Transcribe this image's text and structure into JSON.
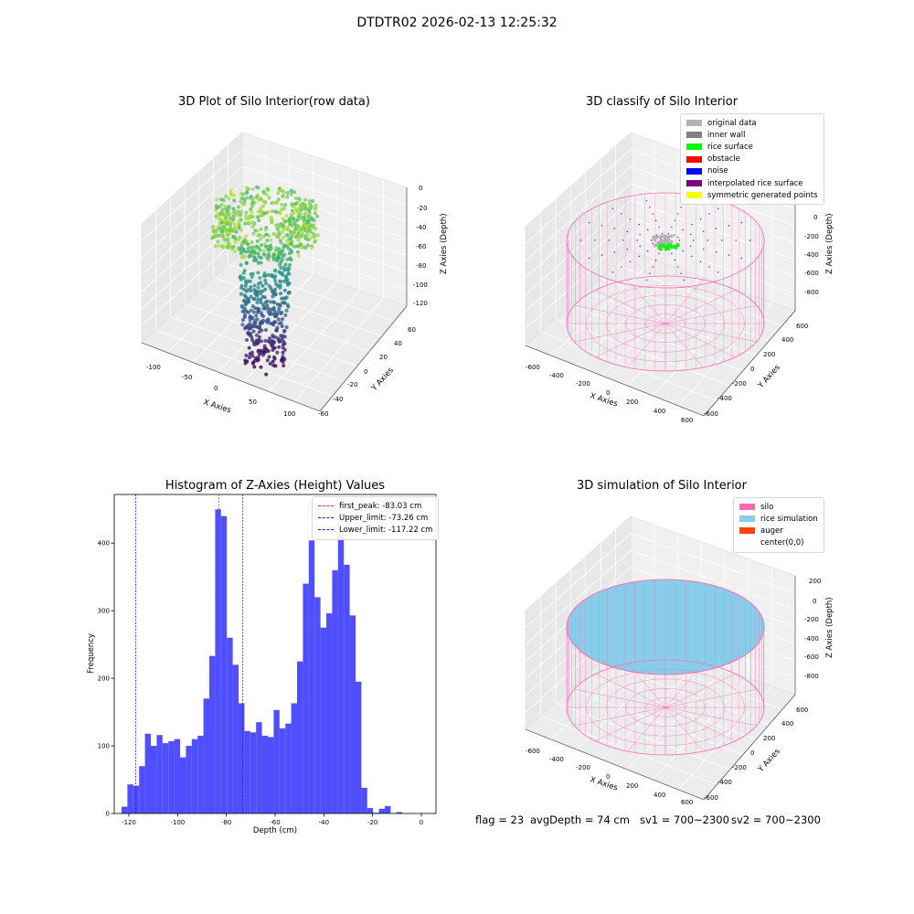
{
  "suptitle": "DTDTR02 2026-02-13 12:25:32",
  "colors": {
    "hist_bar": "#4b4bff",
    "first_peak_line": "#ff2a2a",
    "limit_line": "#1a1aff",
    "silo_wire": "#ff69b4",
    "rice_sim": "#87ceeb",
    "auger": "#ff4500",
    "original": "#b3b3b3",
    "inner_wall": "#808080",
    "rice_surface": "#00ff00",
    "obstacle": "#ff0000",
    "noise": "#0000ff",
    "interp_surface": "#800080",
    "symmetric": "#ffff00"
  },
  "panel1": {
    "title": "3D Plot of Silo Interior(row data)",
    "xlabel": "X Axies",
    "ylabel": "Y Axies",
    "zlabel": "Z Axies (Depth)",
    "xticks": [
      "-100",
      "-50",
      "0",
      "50",
      "100"
    ],
    "yticks": [
      "-60",
      "-40",
      "-20",
      "0",
      "20",
      "40",
      "60"
    ],
    "zticks": [
      "0",
      "-20",
      "-40",
      "-60",
      "-80",
      "-100",
      "-120"
    ]
  },
  "panel2": {
    "title": "3D classify of Silo Interior",
    "xlabel": "X Axies",
    "ylabel": "Y Axies",
    "zlabel": "Z Axies (Depth)",
    "xticks": [
      "-600",
      "-400",
      "-200",
      "0",
      "200",
      "400",
      "600"
    ],
    "yticks": [
      "-600",
      "-400",
      "-200",
      "0",
      "200",
      "400",
      "600"
    ],
    "zticks": [
      "0",
      "-200",
      "-400",
      "-600",
      "-800"
    ],
    "legend": [
      {
        "label": "original data",
        "color": "#b3b3b3"
      },
      {
        "label": "inner wall",
        "color": "#808080"
      },
      {
        "label": "rice surface",
        "color": "#00ff00"
      },
      {
        "label": "obstacle",
        "color": "#ff0000"
      },
      {
        "label": "noise",
        "color": "#0000ff"
      },
      {
        "label": "interpolated rice surface",
        "color": "#800080"
      },
      {
        "label": "symmetric generated points",
        "color": "#ffff00"
      }
    ]
  },
  "panel4": {
    "title": "3D simulation of Silo Interior",
    "xlabel": "X Axies",
    "ylabel": "Y Axies",
    "zlabel": "Z Axies (Depth)",
    "xticks": [
      "-600",
      "-400",
      "-200",
      "0",
      "200",
      "400",
      "600"
    ],
    "yticks": [
      "-600",
      "-400",
      "-200",
      "0",
      "200",
      "400",
      "600"
    ],
    "zticks": [
      "200",
      "0",
      "-200",
      "-400",
      "-600",
      "-800"
    ],
    "legend": [
      {
        "label": "silo",
        "color": "#ff69b4"
      },
      {
        "label": "rice simulation",
        "color": "#87ceeb"
      },
      {
        "label": "auger",
        "color": "#ff4500"
      },
      {
        "label": "center(0,0)",
        "color": ""
      }
    ]
  },
  "footer": {
    "flag": "flag = 23",
    "avg": "avgDepth = 74 cm",
    "sv1": "sv1 = 700~2300",
    "sv2": "sv2 = 700~2300"
  },
  "chart_data": {
    "type": "bar",
    "title": "Histogram of Z-Axies (Height) Values",
    "xlabel": "Depth (cm)",
    "ylabel": "Frequency",
    "xlim": [
      -126,
      6
    ],
    "ylim": [
      0,
      472
    ],
    "xticks": [
      -120,
      -100,
      -80,
      -60,
      -40,
      -20,
      0
    ],
    "yticks": [
      0,
      100,
      200,
      300,
      400
    ],
    "bin_start": -123.0,
    "bin_width": 2.4,
    "values": [
      10,
      43,
      41,
      70,
      118,
      100,
      116,
      104,
      107,
      110,
      83,
      100,
      110,
      115,
      170,
      233,
      450,
      440,
      260,
      220,
      163,
      122,
      120,
      135,
      115,
      113,
      153,
      126,
      133,
      163,
      225,
      340,
      404,
      320,
      275,
      296,
      360,
      415,
      368,
      293,
      195,
      38,
      8,
      1,
      7,
      11,
      0,
      2
    ],
    "vlines": [
      {
        "label": "first_peak: -83.03 cm",
        "x": -83.03,
        "kind": "first_peak"
      },
      {
        "label": "Upper_limit: -73.26 cm",
        "x": -73.26,
        "kind": "limit"
      },
      {
        "label": "Lower_limit: -117.22 cm",
        "x": -117.22,
        "kind": "limit"
      }
    ],
    "legend_position": "upper right"
  }
}
